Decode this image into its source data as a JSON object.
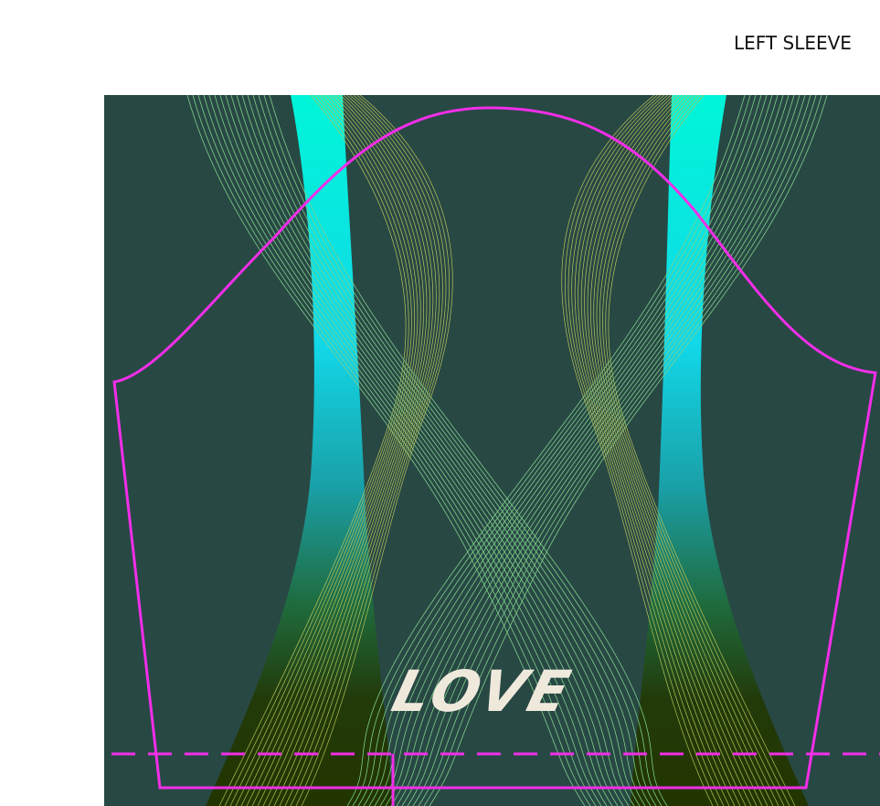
{
  "header": {
    "title": "LEFT SLEEVE"
  },
  "artwork": {
    "text": "LOVE"
  }
}
